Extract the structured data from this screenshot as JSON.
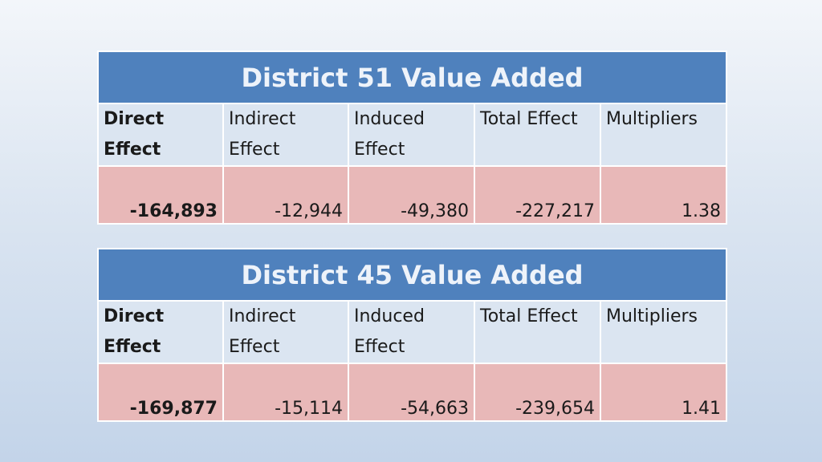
{
  "tables": [
    {
      "title": "District 51 Value Added",
      "headers": [
        [
          "Direct",
          "Effect"
        ],
        [
          "Indirect",
          "Effect"
        ],
        [
          "Induced",
          "Effect"
        ],
        [
          "Total Effect",
          ""
        ],
        [
          "Multipliers",
          ""
        ]
      ],
      "values": [
        "-164,893",
        "-12,944",
        "-49,380",
        "-227,217",
        "1.38"
      ]
    },
    {
      "title": "District 45 Value Added",
      "headers": [
        [
          "Direct",
          "Effect"
        ],
        [
          "Indirect",
          "Effect"
        ],
        [
          "Induced",
          "Effect"
        ],
        [
          "Total Effect",
          ""
        ],
        [
          "Multipliers",
          ""
        ]
      ],
      "values": [
        "-169,877",
        "-15,114",
        "-54,663",
        "-239,654",
        "1.41"
      ]
    }
  ],
  "colors": {
    "title_bg": "#4f81bd",
    "header_bg": "#dbe5f1",
    "value_bg": "#e8b8b8"
  }
}
